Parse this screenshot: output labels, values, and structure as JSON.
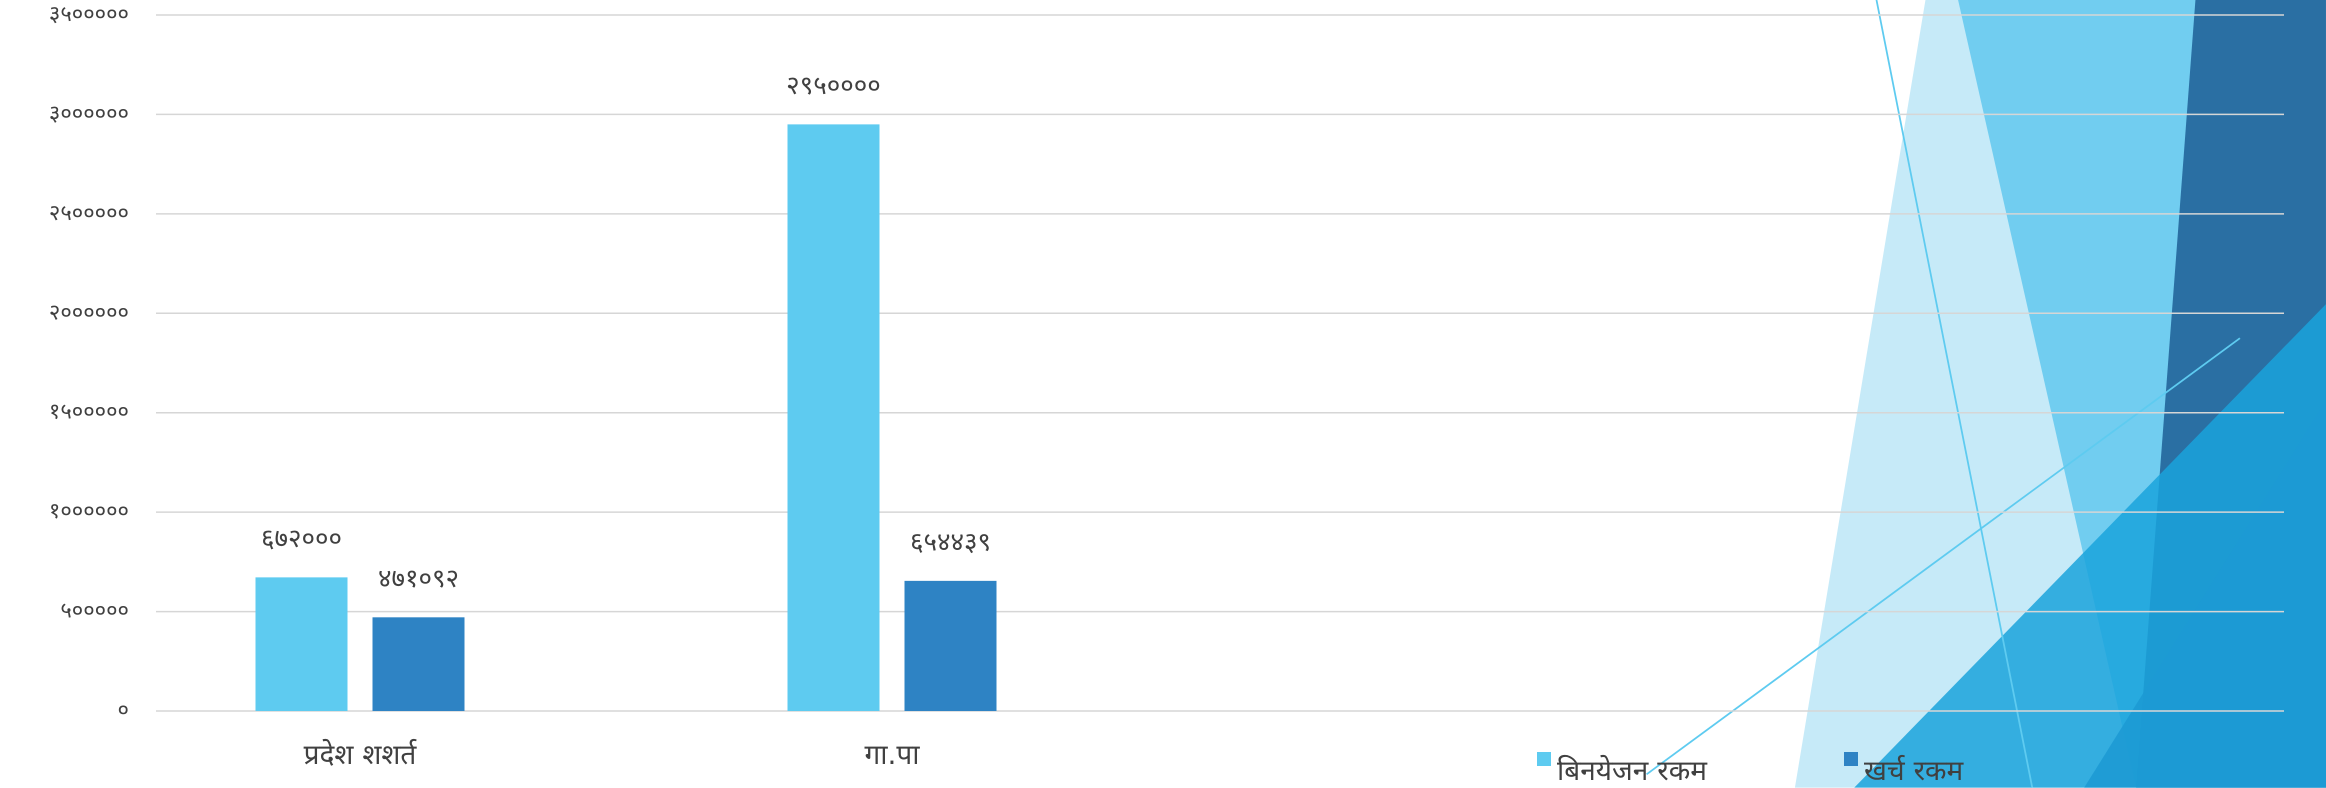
{
  "chart_data": {
    "type": "bar",
    "categories": [
      "प्रदेश शशर्त",
      "गा.पा",
      null,
      null
    ],
    "series": [
      {
        "name": "बिनयेजन रकम",
        "color": "#5ecbf0",
        "values": [
          672000,
          2950000,
          null,
          null
        ],
        "value_labels": [
          "६७२०००",
          "२९५००००",
          null,
          null
        ]
      },
      {
        "name": "खर्च रकम",
        "color": "#2e83c4",
        "values": [
          471092,
          654439,
          null,
          null
        ],
        "value_labels": [
          "४७१०९२",
          "६५४४३९",
          null,
          null
        ]
      }
    ],
    "ylim": [
      0,
      3500000
    ],
    "yticks": [
      {
        "value": 0,
        "label": "०"
      },
      {
        "value": 500000,
        "label": "५०००००"
      },
      {
        "value": 1000000,
        "label": "१००००००"
      },
      {
        "value": 1500000,
        "label": "१५०००००"
      },
      {
        "value": 2000000,
        "label": "२००००००"
      },
      {
        "value": 2500000,
        "label": "२५०००००"
      },
      {
        "value": 3000000,
        "label": "३००००००"
      },
      {
        "value": 3500000,
        "label": "३५०००००"
      }
    ],
    "grid": true,
    "legend": "bottom"
  }
}
